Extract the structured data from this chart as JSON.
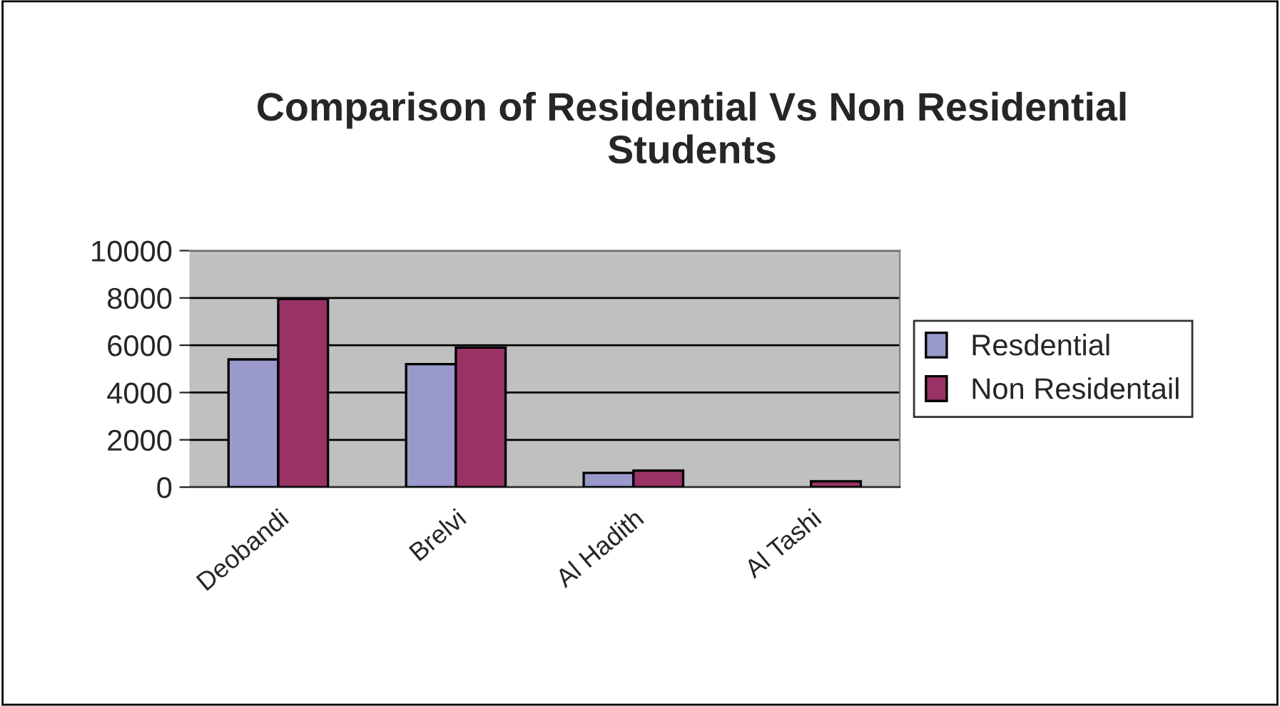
{
  "chart_data": {
    "type": "bar",
    "title": "Comparison of Residential Vs Non Residential Students",
    "categories": [
      "Deobandi",
      "Brelvi",
      "Al Hadith",
      "Al Tashi"
    ],
    "series": [
      {
        "name": "Resdential",
        "color": "#9999cc",
        "values": [
          5400,
          5200,
          600,
          null
        ]
      },
      {
        "name": "Non Residentail",
        "color": "#993366",
        "values": [
          7950,
          5900,
          700,
          250
        ]
      }
    ],
    "ylim": [
      0,
      10000
    ],
    "yticks": [
      0,
      2000,
      4000,
      6000,
      8000,
      10000
    ],
    "grid": "y",
    "legend": "right"
  }
}
